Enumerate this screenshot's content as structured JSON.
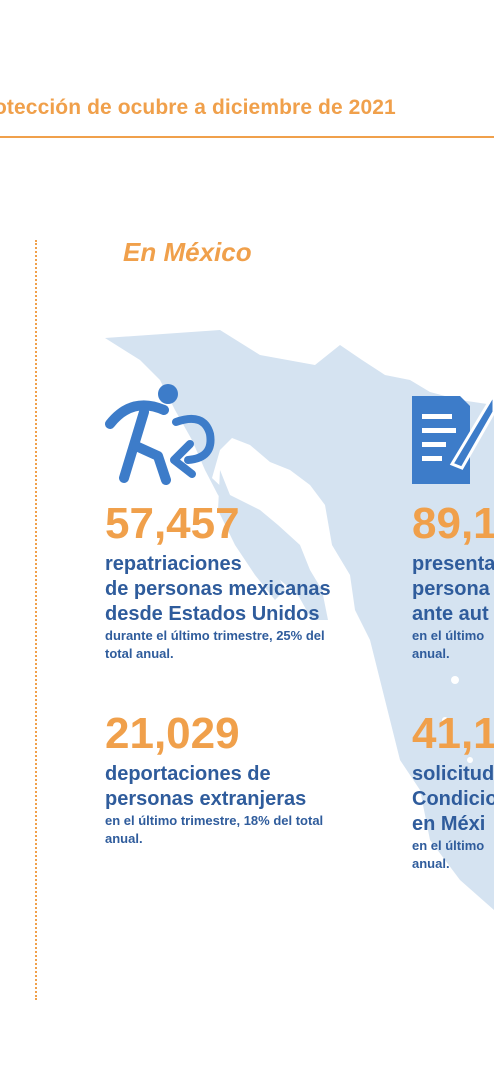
{
  "header": {
    "title": "otección de ocubre a diciembre de 2021"
  },
  "section": {
    "title": "En México"
  },
  "stats_left": [
    {
      "number": "57,457",
      "label_lines": [
        "repatriaciones",
        "de personas mexicanas",
        "desde Estados Unidos"
      ],
      "note_lines": [
        "durante el último trimestre, 25% del",
        "total anual."
      ]
    },
    {
      "number": "21,029",
      "label_lines": [
        "deportaciones de",
        "personas extranjeras"
      ],
      "note_lines": [
        "en el último trimestre, 18% del total",
        "anual."
      ]
    }
  ],
  "stats_right": [
    {
      "number": "89,1",
      "label_lines": [
        "presenta",
        "persona",
        "ante aut"
      ],
      "note_lines": [
        "en el último",
        "anual."
      ]
    },
    {
      "number": "41,1",
      "label_lines": [
        "solicitud",
        "Condicio",
        "en Méxi"
      ],
      "note_lines": [
        "en el último",
        "anual."
      ]
    }
  ],
  "icons": [
    "repatriation-person-arrow-icon",
    "document-pen-icon"
  ],
  "colors": {
    "accent_orange": "#f0a04b",
    "text_blue": "#2f5c9c",
    "icon_blue": "#3d7cc9",
    "map_blue": "#d5e3f1"
  }
}
